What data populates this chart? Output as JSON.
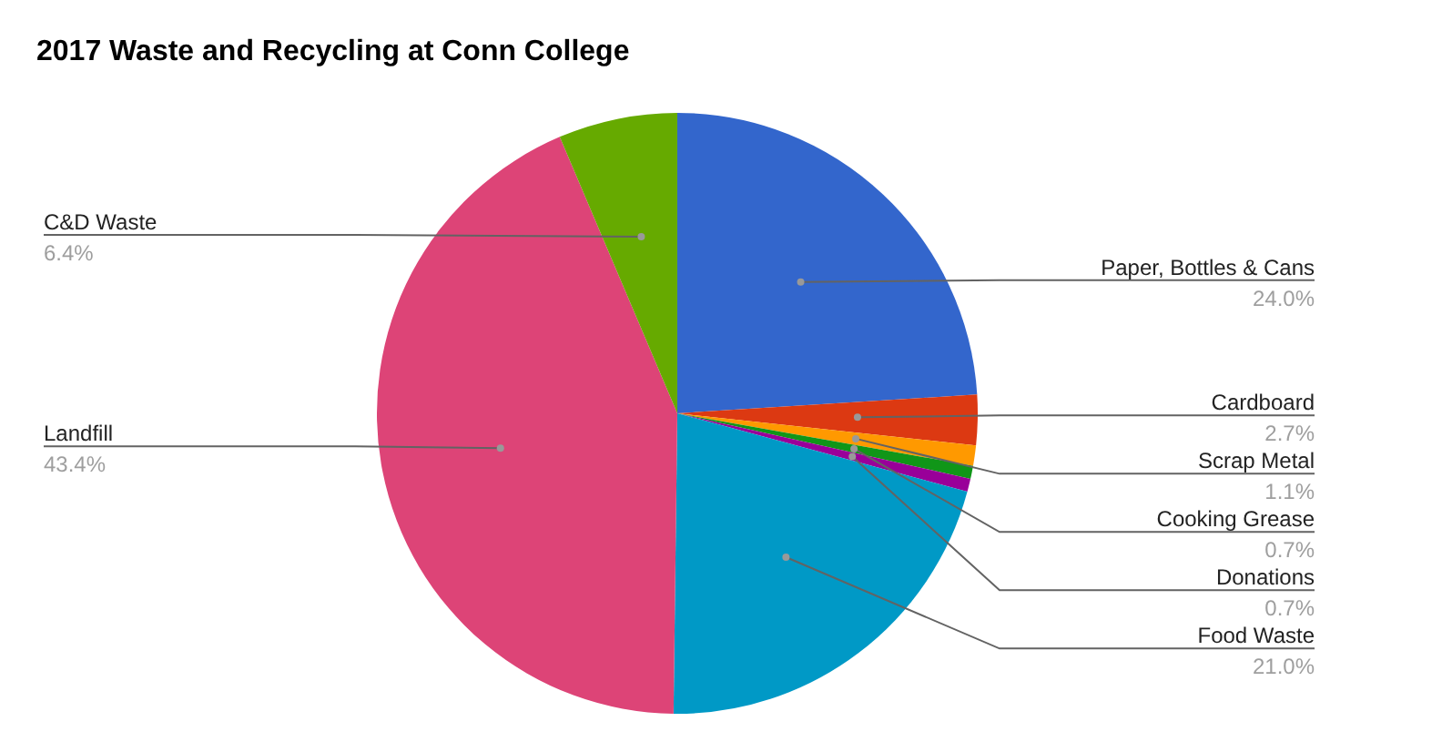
{
  "chart_data": {
    "type": "pie",
    "title": "2017 Waste and Recycling at Conn College",
    "categories": [
      "Paper, Bottles & Cans",
      "Cardboard",
      "Scrap Metal",
      "Cooking Grease",
      "Donations",
      "Food Waste",
      "Landfill",
      "C&D Waste"
    ],
    "values": [
      24.0,
      2.7,
      1.1,
      0.7,
      0.7,
      21.0,
      43.4,
      6.4
    ],
    "value_labels": [
      "24.0%",
      "2.7%",
      "1.1%",
      "0.7%",
      "0.7%",
      "21.0%",
      "43.4%",
      "6.4%"
    ],
    "colors": [
      "#3366cc",
      "#dc3912",
      "#ff9900",
      "#109618",
      "#990099",
      "#0099c6",
      "#dd4477",
      "#66aa00"
    ]
  }
}
